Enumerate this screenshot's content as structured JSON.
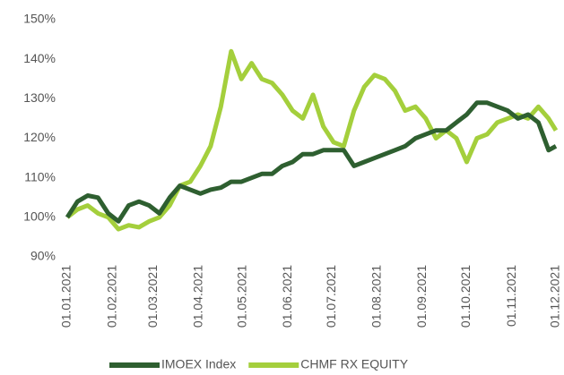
{
  "chart_data": {
    "type": "line",
    "x": [
      "01.01.2021",
      "08.01.2021",
      "15.01.2021",
      "22.01.2021",
      "29.01.2021",
      "05.02.2021",
      "12.02.2021",
      "19.02.2021",
      "26.02.2021",
      "05.03.2021",
      "12.03.2021",
      "19.03.2021",
      "26.03.2021",
      "02.04.2021",
      "09.04.2021",
      "16.04.2021",
      "23.04.2021",
      "30.04.2021",
      "07.05.2021",
      "14.05.2021",
      "21.05.2021",
      "28.05.2021",
      "04.06.2021",
      "11.06.2021",
      "18.06.2021",
      "25.06.2021",
      "02.07.2021",
      "09.07.2021",
      "16.07.2021",
      "23.07.2021",
      "30.07.2021",
      "06.08.2021",
      "13.08.2021",
      "20.08.2021",
      "27.08.2021",
      "03.09.2021",
      "10.09.2021",
      "17.09.2021",
      "24.09.2021",
      "01.10.2021",
      "08.10.2021",
      "15.10.2021",
      "22.10.2021",
      "29.10.2021",
      "05.11.2021",
      "12.11.2021",
      "19.11.2021",
      "26.11.2021",
      "01.12.2021"
    ],
    "series": [
      {
        "name": "IMOEX Index",
        "color": "#2e5f30",
        "values": [
          100,
          104,
          105.5,
          105,
          101,
          99,
          103,
          104,
          103,
          101,
          105,
          108,
          107,
          106,
          107,
          107.5,
          109,
          109,
          110,
          111,
          111,
          113,
          114,
          116,
          116,
          117,
          117,
          117,
          113,
          114,
          115,
          116,
          117,
          118,
          120,
          121,
          122,
          122,
          124,
          126,
          129,
          129,
          128,
          127,
          125,
          126,
          124,
          117,
          118
        ]
      },
      {
        "name": "CHMF RX EQUITY",
        "color": "#a4cf3c",
        "values": [
          100,
          102,
          103,
          101,
          100,
          97,
          98,
          97.5,
          99,
          100,
          103,
          108,
          109,
          113,
          118,
          128,
          142,
          135,
          139,
          135,
          134,
          131,
          127,
          125,
          131,
          123,
          119,
          118,
          127,
          133,
          136,
          135,
          132,
          127,
          128,
          125,
          120,
          122,
          120,
          114,
          120,
          121,
          124,
          125,
          126,
          125,
          128,
          125,
          122
        ]
      }
    ],
    "xticks": [
      "01.01.2021",
      "01.02.2021",
      "01.03.2021",
      "01.04.2021",
      "01.05.2021",
      "01.06.2021",
      "01.07.2021",
      "01.08.2021",
      "01.09.2021",
      "01.10.2021",
      "01.11.2021",
      "01.12.2021"
    ],
    "ylim": [
      90,
      150
    ],
    "yticks": [
      {
        "value": 90,
        "label": "90%"
      },
      {
        "value": 100,
        "label": "100%"
      },
      {
        "value": 110,
        "label": "110%"
      },
      {
        "value": 120,
        "label": "120%"
      },
      {
        "value": 130,
        "label": "130%"
      },
      {
        "value": 140,
        "label": "140%"
      },
      {
        "value": 150,
        "label": "150%"
      }
    ],
    "legend": "bottom"
  }
}
